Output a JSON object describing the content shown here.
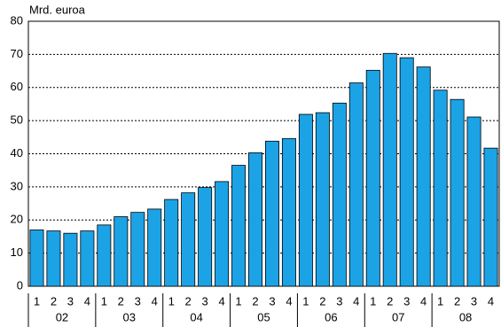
{
  "chart_data": {
    "type": "bar",
    "y_label": "Mrd. euroa",
    "categories": [
      "1",
      "2",
      "3",
      "4",
      "1",
      "2",
      "3",
      "4",
      "1",
      "2",
      "3",
      "4",
      "1",
      "2",
      "3",
      "4",
      "1",
      "2",
      "3",
      "4",
      "1",
      "2",
      "3",
      "4",
      "1",
      "2",
      "3",
      "4"
    ],
    "groups": [
      "02",
      "03",
      "04",
      "05",
      "06",
      "07",
      "08"
    ],
    "values": [
      17,
      16.7,
      16,
      16.7,
      18.5,
      21,
      22.3,
      23.3,
      26.2,
      28.2,
      29.8,
      31.6,
      36.5,
      40.3,
      43.8,
      44.6,
      51.9,
      52.4,
      55.3,
      61.4,
      65.2,
      70.3,
      69,
      66.2,
      59.2,
      56.4,
      51.1,
      41.7
    ],
    "color": "#1ca3e6",
    "ylim": [
      0,
      80
    ],
    "yticks": [
      0,
      10,
      20,
      30,
      40,
      50,
      60,
      70,
      80
    ],
    "grid": true
  }
}
